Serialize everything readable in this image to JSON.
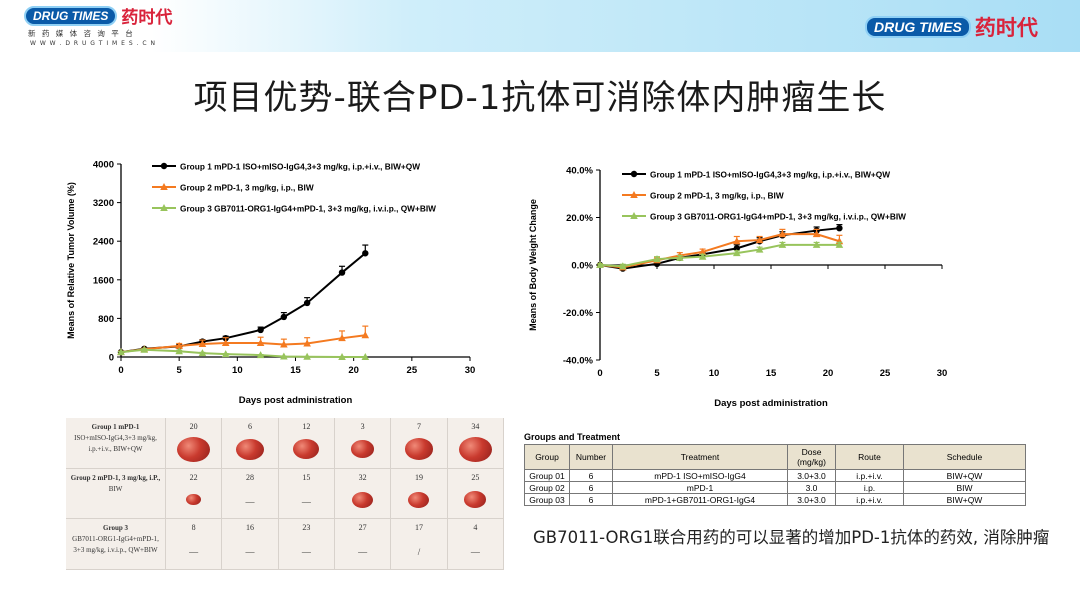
{
  "header": {
    "brand_en": "DRUG TIMES",
    "brand_cn": "药时代",
    "tagline": "新 药 媒 体 咨 询 平 台",
    "url": "W W W . D R U G T I M E S . C N"
  },
  "title": "项目优势-联合PD-1抗体可消除体内肿瘤生长",
  "colors": {
    "group1": "#000000",
    "group2": "#f47a20",
    "group3": "#98c45c",
    "logo_blue": "#0a5aa8",
    "logo_red": "#d9233b"
  },
  "chart_data": [
    {
      "type": "line",
      "xlabel": "Days post administration",
      "ylabel": "Means of Relative Tumor Volume (%)",
      "xlim": [
        0,
        30
      ],
      "ylim": [
        0,
        4000
      ],
      "xticks": [
        "0",
        "5",
        "10",
        "15",
        "20",
        "25",
        "30"
      ],
      "yticks": [
        "0",
        "800",
        "1600",
        "2400",
        "3200",
        "4000"
      ],
      "legend_position": "top",
      "series": [
        {
          "name": "Group 1 mPD-1 ISO+mISO-IgG4,3+3 mg/kg, i.p.+i.v., BIW+QW",
          "marker": "circle",
          "x": [
            0,
            2,
            5,
            7,
            9,
            12,
            14,
            16,
            19,
            21
          ],
          "y": [
            100,
            170,
            220,
            320,
            390,
            560,
            830,
            1120,
            1750,
            2150
          ],
          "err": [
            20,
            20,
            30,
            40,
            40,
            60,
            90,
            110,
            130,
            170
          ]
        },
        {
          "name": "Group 2 mPD-1, 3 mg/kg, i.p., BIW",
          "marker": "triangle",
          "x": [
            0,
            2,
            5,
            7,
            9,
            12,
            14,
            16,
            19,
            21
          ],
          "y": [
            100,
            160,
            230,
            270,
            290,
            290,
            260,
            280,
            390,
            450
          ],
          "err": [
            20,
            20,
            50,
            80,
            110,
            120,
            110,
            120,
            150,
            190
          ]
        },
        {
          "name": "Group 3 GB7011-ORG1-IgG4+mPD-1, 3+3 mg/kg, i.v.i.p., QW+BIW",
          "marker": "triangle",
          "x": [
            0,
            2,
            5,
            7,
            9,
            12,
            14,
            16,
            19,
            21
          ],
          "y": [
            100,
            150,
            120,
            80,
            60,
            40,
            10,
            5,
            0,
            0
          ],
          "err": [
            15,
            20,
            20,
            15,
            10,
            10,
            5,
            0,
            0,
            0
          ]
        }
      ]
    },
    {
      "type": "line",
      "xlabel": "Days post administration",
      "ylabel": "Means of Body Weight Change",
      "xlim": [
        0,
        30
      ],
      "ylim": [
        -40,
        40
      ],
      "xticks": [
        "0",
        "5",
        "10",
        "15",
        "20",
        "25",
        "30"
      ],
      "yticks": [
        "-40.0%",
        "-20.0%",
        "0.0%",
        "20.0%",
        "40.0%"
      ],
      "legend_position": "top",
      "series": [
        {
          "name": "Group 1 mPD-1 ISO+mISO-IgG4,3+3 mg/kg, i.p.+i.v., BIW+QW",
          "marker": "circle",
          "x": [
            0,
            2,
            5,
            7,
            9,
            12,
            14,
            16,
            19,
            21
          ],
          "y": [
            0,
            -1.5,
            0.5,
            3,
            4.5,
            7,
            10,
            12.5,
            14.5,
            15.5
          ],
          "err": [
            0.5,
            0.8,
            0.8,
            1,
            1,
            1.5,
            1.5,
            1.5,
            1.5,
            1.5
          ]
        },
        {
          "name": "Group 2 mPD-1, 3 mg/kg, i.p., BIW",
          "marker": "triangle",
          "x": [
            0,
            2,
            5,
            7,
            9,
            12,
            14,
            16,
            19,
            21
          ],
          "y": [
            0,
            -1,
            2,
            4,
            5.5,
            10,
            10.5,
            13,
            13,
            10
          ],
          "err": [
            0.5,
            0.8,
            1,
            1.2,
            1.2,
            2,
            1.5,
            2,
            2,
            2.5
          ]
        },
        {
          "name": "Group 3 GB7011-ORG1-IgG4+mPD-1, 3+3 mg/kg, i.v.i.p., QW+BIW",
          "marker": "triangle",
          "x": [
            0,
            2,
            5,
            7,
            9,
            12,
            14,
            16,
            19,
            21
          ],
          "y": [
            0,
            -0.5,
            2.5,
            3,
            3.5,
            5,
            6.5,
            8.5,
            8.5,
            8.5
          ],
          "err": [
            0.5,
            0.8,
            1,
            1,
            1,
            1,
            1,
            1,
            1,
            1
          ]
        }
      ]
    }
  ],
  "photo_panel": {
    "rows": [
      {
        "label_lines": [
          "Group 1 mPD-1",
          "ISO+mISO-IgG4,3+3 mg/kg,",
          "i.p.+i.v., BIW+QW"
        ],
        "ids": [
          "20",
          "6",
          "12",
          "3",
          "7",
          "34"
        ],
        "sizes": [
          0.95,
          0.75,
          0.7,
          0.6,
          0.8,
          0.95
        ]
      },
      {
        "label_lines": [
          "Group 2 mPD-1, 3 mg/kg, i.P.,",
          "BIW"
        ],
        "ids": [
          "22",
          "28",
          "15",
          "32",
          "19",
          "25"
        ],
        "sizes": [
          0.25,
          0,
          0,
          0.5,
          0.5,
          0.55
        ]
      },
      {
        "label_lines": [
          "Group 3",
          "GB7011-ORG1-IgG4+mPD-1,",
          "3+3 mg/kg, i.v.i.p., QW+BIW"
        ],
        "ids": [
          "8",
          "16",
          "23",
          "27",
          "17",
          "4"
        ],
        "sizes": [
          0,
          0,
          0,
          0,
          0,
          0
        ]
      }
    ],
    "empty_marks": {
      "1": [
        "",
        "—",
        "—",
        "",
        "",
        ""
      ],
      "2": [
        "—",
        "—",
        "—",
        "—",
        "/",
        "—"
      ]
    }
  },
  "groups_table": {
    "title": "Groups and Treatment",
    "headers": [
      "Group",
      "Number",
      "Treatment",
      "Dose\n(mg/kg)",
      "Route",
      "Schedule"
    ],
    "rows": [
      [
        "Group 01",
        "6",
        "mPD-1 ISO+mISO-IgG4",
        "3.0+3.0",
        "i.p.+i.v.",
        "BIW+QW"
      ],
      [
        "Group 02",
        "6",
        "mPD-1",
        "3.0",
        "i.p.",
        "BIW"
      ],
      [
        "Group 03",
        "6",
        "mPD-1+GB7011-ORG1-IgG4",
        "3.0+3.0",
        "i.p.+i.v.",
        "BIW+QW"
      ]
    ]
  },
  "note": "GB7011-ORG1联合用药的可以显著的增加PD-1抗体的药效, 消除肿瘤"
}
